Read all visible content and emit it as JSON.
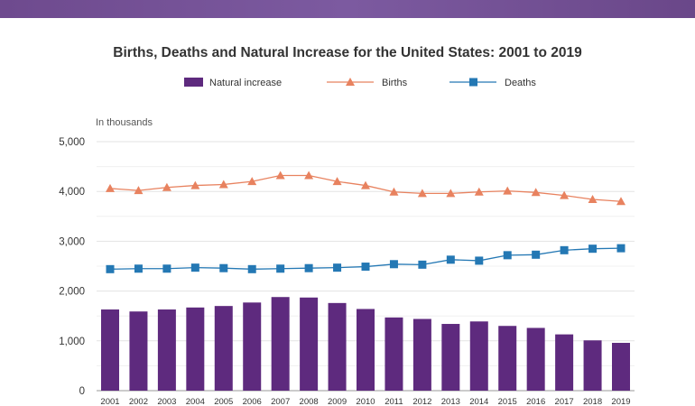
{
  "chart_data": {
    "type": "bar",
    "title": "Births, Deaths and Natural Increase for the United States: 2001 to 2019",
    "ylabel": "In thousands",
    "xlabel": "",
    "ylim": [
      0,
      5000
    ],
    "yticks": [
      0,
      1000,
      2000,
      3000,
      4000,
      5000
    ],
    "ytick_labels": [
      "0",
      "1,000",
      "2,000",
      "3,000",
      "4,000",
      "5,000"
    ],
    "grid": true,
    "legend_position": "top-center",
    "categories": [
      "2001",
      "2002",
      "2003",
      "2004",
      "2005",
      "2006",
      "2007",
      "2008",
      "2009",
      "2010",
      "2011",
      "2012",
      "2013",
      "2014",
      "2015",
      "2016",
      "2017",
      "2018",
      "2019"
    ],
    "series": [
      {
        "name": "Natural increase",
        "type": "bar",
        "color": "#5e2a7e",
        "values": [
          1630,
          1590,
          1630,
          1670,
          1700,
          1770,
          1880,
          1870,
          1760,
          1640,
          1470,
          1440,
          1340,
          1390,
          1300,
          1260,
          1130,
          1010,
          960
        ]
      },
      {
        "name": "Births",
        "type": "line",
        "marker": "triangle",
        "color": "#e8825f",
        "values": [
          4060,
          4020,
          4080,
          4120,
          4140,
          4200,
          4320,
          4320,
          4200,
          4120,
          3990,
          3960,
          3960,
          3990,
          4010,
          3980,
          3920,
          3840,
          3800
        ]
      },
      {
        "name": "Deaths",
        "type": "line",
        "marker": "square",
        "color": "#2478b4",
        "values": [
          2440,
          2450,
          2450,
          2470,
          2460,
          2440,
          2450,
          2460,
          2470,
          2490,
          2540,
          2530,
          2630,
          2610,
          2720,
          2730,
          2820,
          2850,
          2860
        ]
      }
    ]
  }
}
